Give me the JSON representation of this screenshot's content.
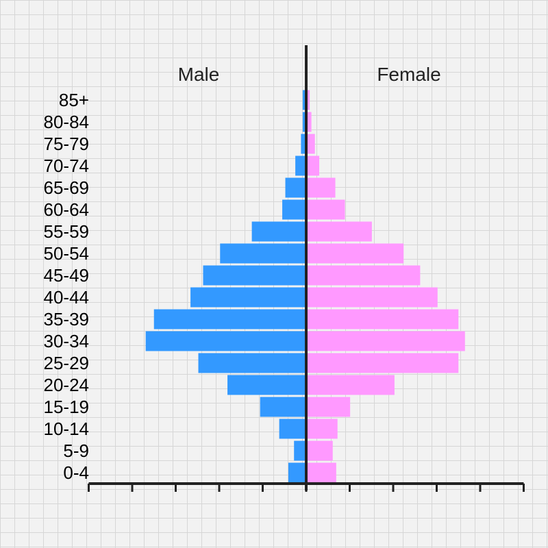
{
  "chart_data": {
    "type": "bar",
    "subtype": "population-pyramid",
    "categories": [
      "85+",
      "80-84",
      "75-79",
      "70-74",
      "65-69",
      "60-64",
      "55-59",
      "50-54",
      "45-49",
      "40-44",
      "35-39",
      "30-34",
      "25-29",
      "20-24",
      "15-19",
      "10-14",
      "5-9",
      "0-4"
    ],
    "series": [
      {
        "name": "Male",
        "side": "left",
        "color": "#3399ff",
        "values": [
          0.08,
          0.08,
          0.12,
          0.25,
          0.48,
          0.55,
          1.25,
          1.98,
          2.37,
          2.66,
          3.5,
          3.69,
          2.48,
          1.81,
          1.06,
          0.62,
          0.28,
          0.41
        ]
      },
      {
        "name": "Female",
        "side": "right",
        "color": "#ff99ff",
        "values": [
          0.08,
          0.12,
          0.2,
          0.3,
          0.67,
          0.89,
          1.51,
          2.24,
          2.62,
          3.02,
          3.5,
          3.65,
          3.5,
          2.03,
          1.01,
          0.72,
          0.61,
          0.69
        ]
      }
    ],
    "xlim": [
      -5,
      5
    ],
    "xtick_step": 1,
    "xtick_labels_shown": false,
    "grid": true,
    "legend_position": "top, beside each half"
  },
  "colors": {
    "background": "#f2f2f2",
    "grid": "#d6d6d6",
    "axis": "#222222"
  }
}
